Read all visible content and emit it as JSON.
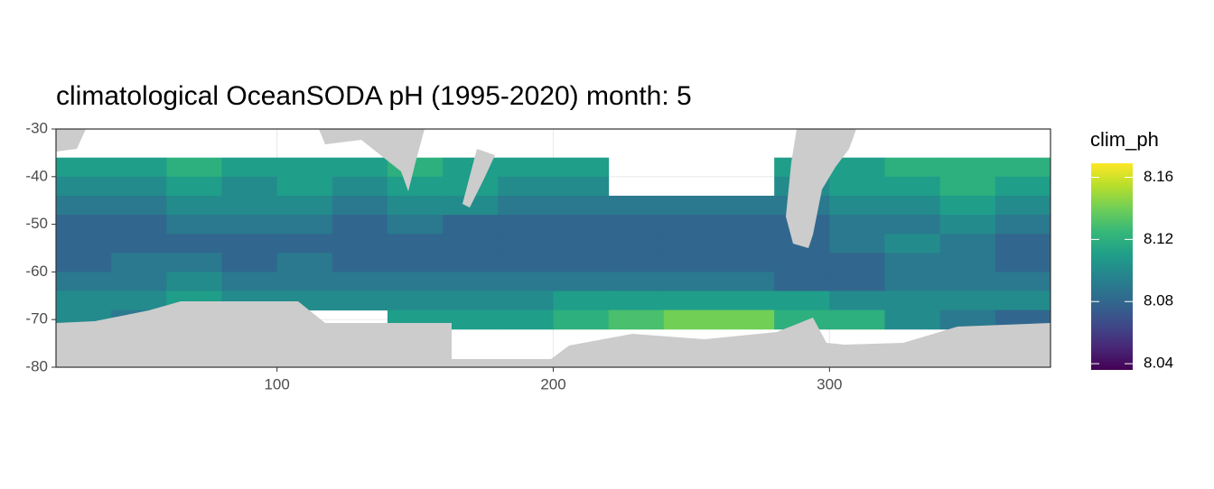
{
  "chart_data": {
    "type": "heatmap",
    "title": "climatological OceanSODA pH (1995-2020) month: 5",
    "legend_title": "clim_ph",
    "xlim": [
      20,
      380
    ],
    "ylim": [
      -80,
      -30
    ],
    "xticks": [
      100,
      200,
      300
    ],
    "yticks": [
      -30,
      -40,
      -50,
      -60,
      -70,
      -80
    ],
    "grid": true,
    "colormap": "viridis",
    "clim": [
      8.036,
      8.169
    ],
    "colorticks": [
      8.04,
      8.08,
      8.12,
      8.16
    ],
    "x": [
      20,
      40,
      60,
      80,
      100,
      120,
      140,
      160,
      180,
      200,
      220,
      240,
      260,
      280,
      300,
      320,
      340,
      360
    ],
    "y": [
      -36,
      -40,
      -44,
      -48,
      -52,
      -56,
      -60,
      -64,
      -68
    ],
    "values": [
      [
        8.11,
        8.11,
        8.12,
        8.11,
        8.11,
        8.11,
        8.12,
        8.11,
        8.11,
        8.11,
        null,
        null,
        null,
        8.11,
        8.11,
        8.12,
        8.12,
        8.12
      ],
      [
        8.1,
        8.1,
        8.11,
        8.1,
        8.11,
        8.1,
        8.11,
        8.11,
        8.1,
        8.1,
        null,
        null,
        null,
        8.1,
        8.11,
        8.11,
        8.12,
        8.11
      ],
      [
        8.09,
        8.09,
        8.1,
        8.1,
        8.1,
        8.09,
        8.1,
        8.1,
        8.09,
        8.09,
        8.09,
        8.09,
        8.09,
        8.09,
        8.1,
        8.1,
        8.11,
        8.1
      ],
      [
        8.08,
        8.08,
        8.09,
        8.09,
        8.09,
        8.08,
        8.09,
        8.08,
        8.08,
        8.08,
        8.08,
        8.08,
        8.08,
        8.08,
        8.09,
        8.09,
        8.1,
        8.09
      ],
      [
        8.08,
        8.08,
        8.08,
        8.08,
        8.08,
        8.08,
        8.08,
        8.08,
        8.08,
        8.08,
        8.08,
        8.08,
        8.08,
        8.08,
        8.09,
        8.1,
        8.09,
        8.08
      ],
      [
        8.08,
        8.09,
        8.09,
        8.08,
        8.09,
        8.08,
        8.08,
        8.08,
        8.08,
        8.08,
        8.08,
        8.08,
        8.08,
        8.08,
        8.08,
        8.09,
        8.09,
        8.08
      ],
      [
        8.09,
        8.09,
        8.1,
        8.09,
        8.09,
        8.09,
        8.09,
        8.09,
        8.09,
        8.09,
        8.09,
        8.09,
        8.09,
        8.08,
        8.08,
        8.09,
        8.09,
        8.09
      ],
      [
        8.1,
        8.1,
        8.11,
        8.1,
        8.1,
        8.1,
        8.1,
        8.1,
        8.1,
        8.11,
        8.11,
        8.11,
        8.11,
        8.11,
        8.1,
        8.1,
        8.1,
        8.1
      ],
      [
        8.1,
        8.09,
        null,
        null,
        null,
        null,
        8.11,
        8.11,
        8.11,
        8.12,
        8.13,
        8.14,
        8.14,
        8.12,
        8.12,
        8.1,
        8.09,
        8.08
      ]
    ]
  }
}
